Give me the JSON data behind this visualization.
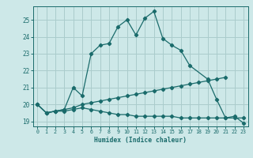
{
  "xlabel": "Humidex (Indice chaleur)",
  "bg_color": "#cde8e8",
  "grid_color": "#aacccc",
  "line_color": "#1a6b6b",
  "xlim": [
    -0.5,
    23.5
  ],
  "ylim": [
    18.7,
    25.8
  ],
  "xticks": [
    0,
    1,
    2,
    3,
    4,
    5,
    6,
    7,
    8,
    9,
    10,
    11,
    12,
    13,
    14,
    15,
    16,
    17,
    18,
    19,
    20,
    21,
    22,
    23
  ],
  "yticks": [
    19,
    20,
    21,
    22,
    23,
    24,
    25
  ],
  "main_x": [
    0,
    1,
    2,
    3,
    4,
    5,
    6,
    7,
    8,
    9,
    10,
    11,
    12,
    13,
    14,
    15,
    16,
    17,
    19,
    20,
    21,
    22,
    23
  ],
  "main_y": [
    20.0,
    19.5,
    19.6,
    19.7,
    21.0,
    20.5,
    23.0,
    23.5,
    23.6,
    24.6,
    25.0,
    24.1,
    25.1,
    25.5,
    23.9,
    23.5,
    23.2,
    22.3,
    21.5,
    20.3,
    19.2,
    19.3,
    18.9
  ],
  "upper_x": [
    0,
    1,
    2,
    3,
    4,
    5,
    6,
    7,
    8,
    9,
    10,
    11,
    12,
    13,
    14,
    15,
    16,
    17,
    18,
    19,
    20,
    21
  ],
  "upper_y": [
    20.0,
    19.5,
    19.6,
    19.7,
    19.8,
    20.0,
    20.1,
    20.2,
    20.3,
    20.4,
    20.5,
    20.6,
    20.7,
    20.8,
    20.9,
    21.0,
    21.1,
    21.2,
    21.3,
    21.4,
    21.5,
    21.6
  ],
  "lower_x": [
    0,
    1,
    2,
    3,
    4,
    5,
    6,
    7,
    8,
    9,
    10,
    11,
    12,
    13,
    14,
    15,
    16,
    17,
    18,
    19,
    20,
    21,
    22,
    23
  ],
  "lower_y": [
    20.0,
    19.5,
    19.6,
    19.6,
    19.7,
    19.8,
    19.7,
    19.6,
    19.5,
    19.4,
    19.4,
    19.3,
    19.3,
    19.3,
    19.3,
    19.3,
    19.2,
    19.2,
    19.2,
    19.2,
    19.2,
    19.2,
    19.2,
    19.2
  ]
}
